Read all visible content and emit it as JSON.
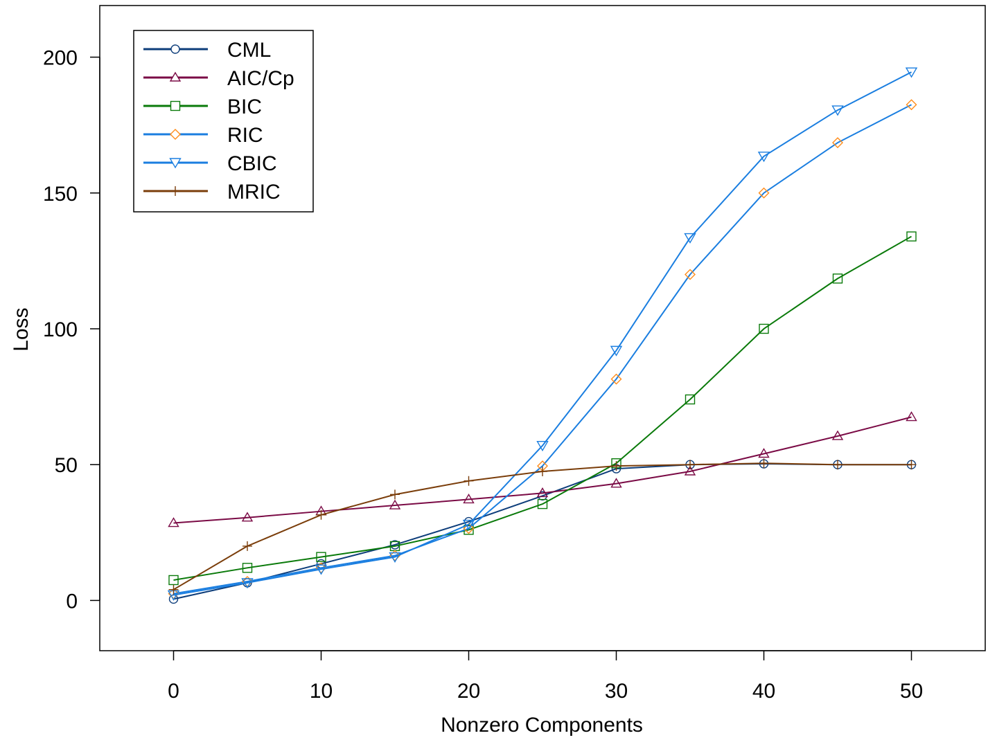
{
  "chart_data": {
    "type": "line",
    "title": "",
    "xlabel": "Nonzero Components",
    "ylabel": "Loss",
    "xlim": [
      -5,
      55
    ],
    "ylim": [
      -18.5,
      219
    ],
    "xticks": [
      "0",
      "10",
      "20",
      "30",
      "40",
      "50"
    ],
    "yticks": [
      "0",
      "50",
      "100",
      "150",
      "200"
    ],
    "grid": false,
    "legend_position": "top-left",
    "x": [
      0,
      5,
      10,
      15,
      20,
      25,
      30,
      35,
      40,
      45,
      50
    ],
    "series": [
      {
        "name": "CML",
        "color": "#0d3d7a",
        "marker": "circle",
        "values": [
          0.5,
          6.5,
          13.5,
          20.5,
          29,
          38.5,
          48.5,
          50,
          50.3,
          50,
          50
        ]
      },
      {
        "name": "AIC/Cp",
        "color": "#7a0a45",
        "marker": "triangle-up",
        "values": [
          28.5,
          30.5,
          32.8,
          35,
          37.2,
          39.5,
          43,
          47.5,
          54,
          60.5,
          67.5
        ]
      },
      {
        "name": "BIC",
        "color": "#0a7a0a",
        "marker": "square",
        "values": [
          7.5,
          12,
          16,
          20,
          26,
          35.5,
          50.5,
          74,
          100,
          118.5,
          134
        ]
      },
      {
        "name": "RIC",
        "color": "#ff8c1a",
        "line_color": "#1a7ee0",
        "marker": "diamond",
        "values": [
          2.5,
          7,
          12,
          16.5,
          26.5,
          49.5,
          81.5,
          120,
          150,
          168.5,
          182.5
        ]
      },
      {
        "name": "CBIC",
        "color": "#1a7ee0",
        "marker": "triangle-down",
        "values": [
          2,
          6.5,
          11.5,
          16,
          28,
          57,
          92,
          133.5,
          163.5,
          180.5,
          194.5
        ]
      },
      {
        "name": "MRIC",
        "color": "#7a3d0a",
        "marker": "plus",
        "values": [
          4,
          20,
          31.5,
          39,
          44,
          47.5,
          49.5,
          50,
          50.5,
          50,
          50
        ]
      }
    ]
  }
}
